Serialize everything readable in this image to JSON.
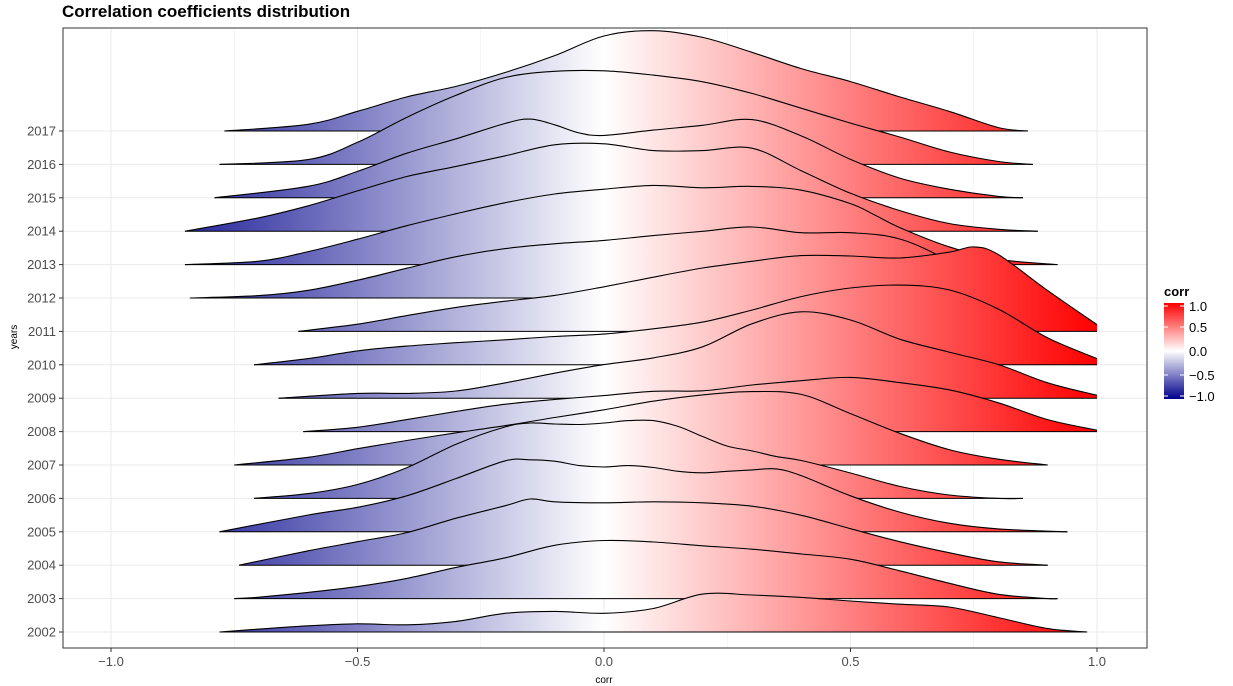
{
  "chart_data": {
    "type": "ridgeline",
    "title": "Correlation coefficients distribution",
    "xlabel": "corr",
    "ylabel": "years",
    "xlim": [
      -1.1,
      1.1
    ],
    "x_ticks": [
      -1.0,
      -0.5,
      0.0,
      0.5,
      1.0
    ],
    "x_tick_labels": [
      "−1.0",
      "−0.5",
      "0.0",
      "0.5",
      "1.0"
    ],
    "grid": true,
    "fill_scale": {
      "legend_title": "corr",
      "low": "#00008b",
      "mid": "#ffffff",
      "high": "#ff0000",
      "range": [
        -1.0,
        1.0
      ],
      "legend_ticks": [
        1.0,
        0.5,
        0.0,
        -0.5,
        -1.0
      ],
      "legend_tick_labels": [
        "1.0",
        "0.5",
        "0.0",
        "−0.5",
        "−1.0"
      ],
      "legend_position": "right"
    },
    "series": [
      {
        "name": "2002",
        "x": [
          -0.78,
          -0.7,
          -0.6,
          -0.5,
          -0.4,
          -0.3,
          -0.2,
          -0.1,
          0.0,
          0.1,
          0.2,
          0.3,
          0.4,
          0.5,
          0.6,
          0.7,
          0.8,
          0.9,
          0.98
        ],
        "density": [
          0.0,
          0.12,
          0.26,
          0.34,
          0.3,
          0.44,
          0.78,
          0.86,
          0.78,
          0.98,
          1.58,
          1.54,
          1.44,
          1.29,
          1.16,
          1.04,
          0.6,
          0.14,
          0.0
        ]
      },
      {
        "name": "2003",
        "x": [
          -0.75,
          -0.7,
          -0.6,
          -0.5,
          -0.4,
          -0.3,
          -0.2,
          -0.1,
          0.0,
          0.1,
          0.2,
          0.3,
          0.4,
          0.5,
          0.6,
          0.7,
          0.8,
          0.9,
          0.92
        ],
        "density": [
          0.0,
          0.06,
          0.26,
          0.5,
          0.84,
          1.3,
          1.7,
          2.22,
          2.42,
          2.36,
          2.2,
          2.06,
          1.86,
          1.64,
          1.16,
          0.64,
          0.18,
          0.0,
          0.0
        ]
      },
      {
        "name": "2004",
        "x": [
          -0.74,
          -0.6,
          -0.5,
          -0.4,
          -0.3,
          -0.2,
          -0.15,
          -0.1,
          0.0,
          0.1,
          0.2,
          0.3,
          0.4,
          0.5,
          0.6,
          0.7,
          0.8,
          0.9
        ],
        "density": [
          0.0,
          0.6,
          0.98,
          1.36,
          1.96,
          2.48,
          2.76,
          2.64,
          2.6,
          2.64,
          2.6,
          2.46,
          2.08,
          1.52,
          0.98,
          0.52,
          0.14,
          0.0
        ]
      },
      {
        "name": "2005",
        "x": [
          -0.78,
          -0.6,
          -0.5,
          -0.4,
          -0.3,
          -0.2,
          -0.15,
          -0.1,
          -0.05,
          0.0,
          0.05,
          0.1,
          0.15,
          0.2,
          0.25,
          0.3,
          0.35,
          0.4,
          0.5,
          0.6,
          0.7,
          0.8,
          0.94
        ],
        "density": [
          0.0,
          0.7,
          1.02,
          1.5,
          2.22,
          2.96,
          3.0,
          2.94,
          2.76,
          2.7,
          2.76,
          2.68,
          2.52,
          2.46,
          2.52,
          2.58,
          2.62,
          2.34,
          1.5,
          0.82,
          0.36,
          0.12,
          0.0
        ]
      },
      {
        "name": "2006",
        "x": [
          -0.71,
          -0.6,
          -0.5,
          -0.4,
          -0.3,
          -0.2,
          -0.15,
          -0.1,
          -0.05,
          0.0,
          0.05,
          0.1,
          0.15,
          0.2,
          0.25,
          0.3,
          0.35,
          0.4,
          0.5,
          0.6,
          0.7,
          0.8,
          0.85
        ],
        "density": [
          0.0,
          0.2,
          0.58,
          1.28,
          2.26,
          2.98,
          3.14,
          3.1,
          3.08,
          3.14,
          3.24,
          3.24,
          3.0,
          2.58,
          2.18,
          1.98,
          1.74,
          1.58,
          1.06,
          0.5,
          0.14,
          0.0,
          0.0
        ]
      },
      {
        "name": "2007",
        "x": [
          -0.75,
          -0.6,
          -0.5,
          -0.4,
          -0.3,
          -0.2,
          -0.1,
          0.0,
          0.1,
          0.2,
          0.3,
          0.4,
          0.5,
          0.6,
          0.7,
          0.8,
          0.9
        ],
        "density": [
          0.0,
          0.32,
          0.68,
          1.02,
          1.34,
          1.64,
          1.98,
          2.3,
          2.66,
          2.92,
          3.06,
          2.94,
          2.14,
          1.32,
          0.64,
          0.24,
          0.0
        ]
      },
      {
        "name": "2008",
        "x": [
          -0.61,
          -0.5,
          -0.4,
          -0.3,
          -0.2,
          -0.1,
          0.0,
          0.1,
          0.2,
          0.3,
          0.4,
          0.5,
          0.6,
          0.7,
          0.8,
          0.9,
          1.0
        ],
        "density": [
          0.0,
          0.18,
          0.5,
          0.84,
          1.14,
          1.34,
          1.5,
          1.68,
          1.7,
          1.94,
          2.12,
          2.26,
          2.04,
          1.74,
          1.2,
          0.5,
          0.06
        ]
      },
      {
        "name": "2009",
        "x": [
          -0.66,
          -0.5,
          -0.4,
          -0.3,
          -0.2,
          -0.1,
          0.0,
          0.1,
          0.2,
          0.3,
          0.4,
          0.5,
          0.6,
          0.7,
          0.8,
          0.9,
          1.0
        ],
        "density": [
          0.0,
          0.2,
          0.2,
          0.3,
          0.64,
          1.04,
          1.4,
          1.68,
          2.14,
          3.1,
          3.6,
          3.26,
          2.46,
          1.92,
          1.4,
          0.64,
          0.12
        ]
      },
      {
        "name": "2010",
        "x": [
          -0.71,
          -0.6,
          -0.5,
          -0.4,
          -0.3,
          -0.2,
          -0.1,
          0.0,
          0.1,
          0.2,
          0.3,
          0.4,
          0.5,
          0.6,
          0.7,
          0.8,
          0.9,
          1.0
        ],
        "density": [
          0.0,
          0.26,
          0.58,
          0.78,
          0.92,
          1.04,
          1.18,
          1.28,
          1.5,
          1.78,
          2.28,
          2.84,
          3.2,
          3.32,
          3.12,
          2.32,
          1.12,
          0.26
        ]
      },
      {
        "name": "2011",
        "x": [
          -0.62,
          -0.5,
          -0.4,
          -0.3,
          -0.2,
          -0.1,
          0.0,
          0.1,
          0.2,
          0.3,
          0.4,
          0.5,
          0.6,
          0.7,
          0.75,
          0.8,
          0.9,
          1.0
        ],
        "density": [
          0.0,
          0.3,
          0.66,
          1.0,
          1.26,
          1.5,
          1.86,
          2.26,
          2.64,
          2.92,
          3.16,
          3.14,
          3.06,
          3.3,
          3.52,
          3.2,
          1.7,
          0.28
        ]
      },
      {
        "name": "2012",
        "x": [
          -0.84,
          -0.7,
          -0.6,
          -0.5,
          -0.4,
          -0.3,
          -0.2,
          -0.1,
          0.0,
          0.1,
          0.2,
          0.3,
          0.4,
          0.5,
          0.6,
          0.7,
          0.8,
          0.85,
          0.9
        ],
        "density": [
          0.0,
          0.1,
          0.32,
          0.74,
          1.24,
          1.72,
          2.06,
          2.26,
          2.4,
          2.6,
          2.78,
          2.96,
          2.72,
          2.72,
          2.46,
          1.54,
          0.28,
          0.04,
          0.0
        ]
      },
      {
        "name": "2013",
        "x": [
          -0.85,
          -0.7,
          -0.6,
          -0.5,
          -0.4,
          -0.3,
          -0.2,
          -0.1,
          0.0,
          0.1,
          0.2,
          0.3,
          0.4,
          0.5,
          0.55,
          0.6,
          0.7,
          0.8,
          0.92
        ],
        "density": [
          0.0,
          0.14,
          0.54,
          1.06,
          1.62,
          2.12,
          2.58,
          2.94,
          3.14,
          3.3,
          3.2,
          3.26,
          3.1,
          2.54,
          2.06,
          1.54,
          0.74,
          0.22,
          0.0
        ]
      },
      {
        "name": "2014",
        "x": [
          -0.85,
          -0.7,
          -0.6,
          -0.5,
          -0.4,
          -0.3,
          -0.2,
          -0.1,
          0.0,
          0.1,
          0.2,
          0.3,
          0.4,
          0.5,
          0.6,
          0.7,
          0.8,
          0.88
        ],
        "density": [
          0.0,
          0.56,
          1.06,
          1.68,
          2.28,
          2.7,
          3.14,
          3.6,
          3.64,
          3.36,
          3.36,
          3.46,
          2.52,
          1.58,
          0.86,
          0.32,
          0.08,
          0.0
        ]
      },
      {
        "name": "2015",
        "x": [
          -0.79,
          -0.6,
          -0.5,
          -0.4,
          -0.3,
          -0.2,
          -0.15,
          -0.1,
          -0.05,
          0.0,
          0.1,
          0.2,
          0.3,
          0.4,
          0.5,
          0.6,
          0.7,
          0.8,
          0.85
        ],
        "density": [
          0.0,
          0.48,
          1.1,
          1.86,
          2.46,
          3.1,
          3.28,
          3.04,
          2.7,
          2.6,
          2.82,
          3.02,
          3.26,
          2.58,
          1.6,
          0.82,
          0.36,
          0.06,
          0.0
        ]
      },
      {
        "name": "2016",
        "x": [
          -0.78,
          -0.6,
          -0.5,
          -0.4,
          -0.3,
          -0.2,
          -0.1,
          0.0,
          0.1,
          0.2,
          0.3,
          0.4,
          0.5,
          0.6,
          0.7,
          0.8,
          0.87
        ],
        "density": [
          0.0,
          0.2,
          0.92,
          1.96,
          2.88,
          3.62,
          3.88,
          3.9,
          3.72,
          3.44,
          2.96,
          2.34,
          1.72,
          1.14,
          0.52,
          0.12,
          0.0
        ]
      },
      {
        "name": "2017",
        "x": [
          -0.77,
          -0.6,
          -0.5,
          -0.4,
          -0.3,
          -0.2,
          -0.1,
          0.0,
          0.1,
          0.2,
          0.3,
          0.4,
          0.5,
          0.6,
          0.7,
          0.8,
          0.86
        ],
        "density": [
          0.0,
          0.28,
          0.82,
          1.42,
          1.86,
          2.44,
          3.14,
          3.96,
          4.18,
          3.9,
          3.28,
          2.6,
          2.06,
          1.42,
          0.82,
          0.14,
          0.0
        ]
      }
    ]
  }
}
